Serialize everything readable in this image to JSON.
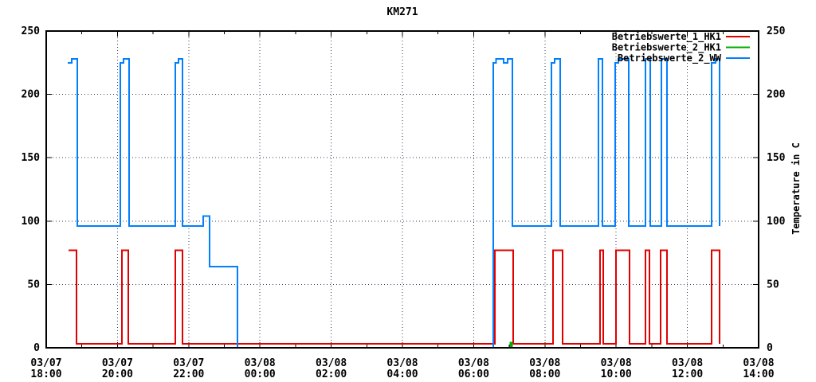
{
  "chart_data": {
    "type": "line",
    "title": "KM271",
    "ylabel_right": "Temperature in C",
    "x_axis": {
      "range_hours": [
        0,
        20
      ],
      "ticks": [
        {
          "t": 0,
          "date": "03/07",
          "time": "18:00"
        },
        {
          "t": 2,
          "date": "03/07",
          "time": "20:00"
        },
        {
          "t": 4,
          "date": "03/07",
          "time": "22:00"
        },
        {
          "t": 6,
          "date": "03/08",
          "time": "00:00"
        },
        {
          "t": 8,
          "date": "03/08",
          "time": "02:00"
        },
        {
          "t": 10,
          "date": "03/08",
          "time": "04:00"
        },
        {
          "t": 12,
          "date": "03/08",
          "time": "06:00"
        },
        {
          "t": 14,
          "date": "03/08",
          "time": "08:00"
        },
        {
          "t": 16,
          "date": "03/08",
          "time": "10:00"
        },
        {
          "t": 18,
          "date": "03/08",
          "time": "12:00"
        },
        {
          "t": 20,
          "date": "03/08",
          "time": "14:00"
        }
      ],
      "minor_ticks_hours": [
        1,
        3,
        5,
        7,
        9,
        11,
        13,
        15,
        17,
        19
      ]
    },
    "y_axis": {
      "min": 0,
      "max": 250,
      "ticks": [
        0,
        50,
        100,
        150,
        200,
        250
      ]
    },
    "grid": {
      "major_x": true,
      "major_y": true,
      "color": "#3a3a5e"
    },
    "legend": {
      "position": "top-right-inside",
      "entries": [
        {
          "name": "Betriebswerte_1_HK1",
          "color": "#e00000"
        },
        {
          "name": "Betriebswerte_2_HK1",
          "color": "#00b000"
        },
        {
          "name": "Betriebswerte_2_WW",
          "color": "#0080ff"
        }
      ]
    },
    "series": [
      {
        "name": "Betriebswerte_1_HK1",
        "color": "#e00000",
        "mode": "steps",
        "points": [
          [
            0.63,
            77
          ],
          [
            0.85,
            3
          ],
          [
            2.13,
            77
          ],
          [
            2.3,
            3
          ],
          [
            3.62,
            77
          ],
          [
            3.83,
            3
          ],
          [
            12.6,
            77
          ],
          [
            13.11,
            3
          ],
          [
            14.23,
            77
          ],
          [
            14.5,
            3
          ],
          [
            15.55,
            77
          ],
          [
            15.64,
            3
          ],
          [
            16.0,
            77
          ],
          [
            16.38,
            3
          ],
          [
            16.82,
            77
          ],
          [
            16.94,
            3
          ],
          [
            17.25,
            77
          ],
          [
            17.43,
            3
          ],
          [
            18.68,
            77
          ],
          [
            18.9,
            3
          ]
        ]
      },
      {
        "name": "Betriebswerte_2_HK1",
        "color": "#00b000",
        "mode": "steps",
        "points": [
          [
            0.6,
            0
          ],
          [
            13.03,
            4
          ],
          [
            13.08,
            0
          ],
          [
            18.9,
            0
          ]
        ]
      },
      {
        "name": "Betriebswerte_2_WW",
        "color": "#0080ff",
        "mode": "steps",
        "points": [
          [
            0.6,
            225
          ],
          [
            0.72,
            228
          ],
          [
            0.87,
            96
          ],
          [
            2.08,
            225
          ],
          [
            2.17,
            228
          ],
          [
            2.33,
            96
          ],
          [
            3.62,
            225
          ],
          [
            3.71,
            228
          ],
          [
            3.83,
            96
          ],
          [
            4.41,
            104
          ],
          [
            4.59,
            64
          ],
          [
            5.37,
            0
          ],
          [
            12.55,
            225
          ],
          [
            12.63,
            228
          ],
          [
            12.84,
            225
          ],
          [
            12.95,
            228
          ],
          [
            13.09,
            96
          ],
          [
            14.18,
            225
          ],
          [
            14.27,
            228
          ],
          [
            14.43,
            96
          ],
          [
            15.5,
            228
          ],
          [
            15.62,
            96
          ],
          [
            15.97,
            225
          ],
          [
            16.06,
            228
          ],
          [
            16.35,
            96
          ],
          [
            16.82,
            228
          ],
          [
            16.96,
            96
          ],
          [
            17.27,
            228
          ],
          [
            17.43,
            96
          ],
          [
            18.68,
            225
          ],
          [
            18.79,
            228
          ],
          [
            18.9,
            96
          ]
        ]
      }
    ]
  }
}
